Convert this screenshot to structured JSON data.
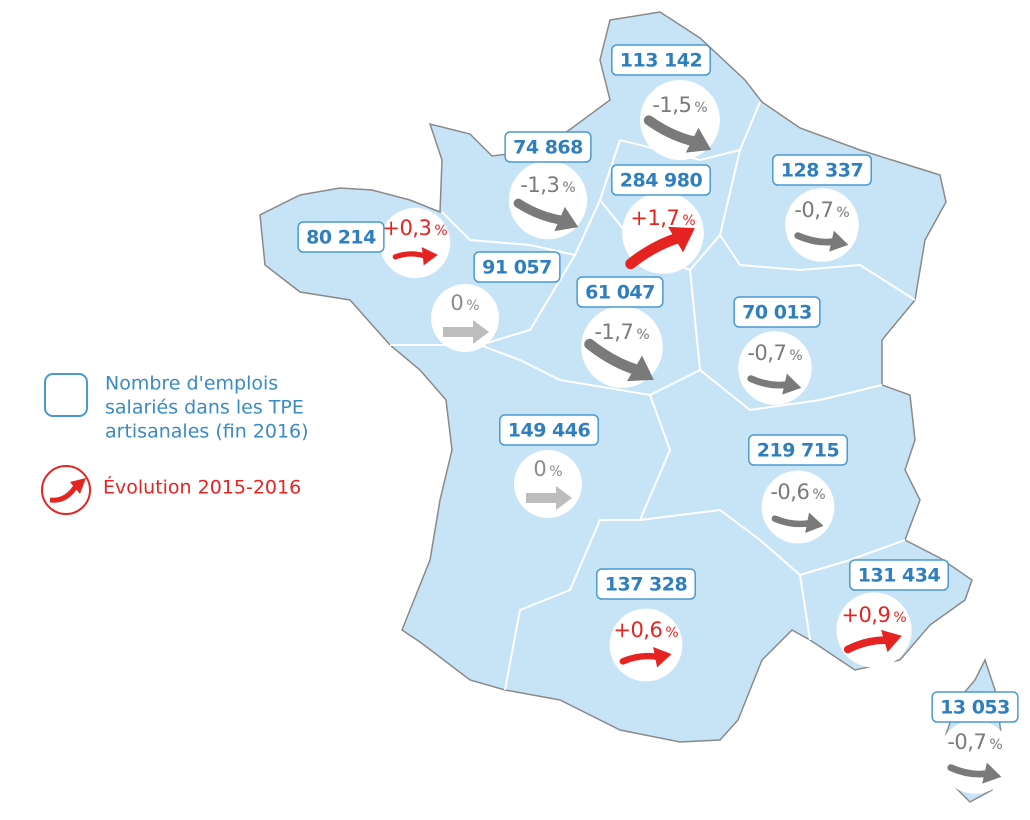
{
  "legend": {
    "employees_lines": [
      "Nombre d'emplois",
      "salariés dans les TPE",
      "artisanales (fin 2016)"
    ],
    "evolution": "Évolution 2015-2016",
    "evolution_color": "#e52421"
  },
  "unit": "%",
  "regions": [
    {
      "employees": "113 142",
      "evolution": "-1,5",
      "color": "#7a7a7a"
    },
    {
      "employees": "74 868",
      "evolution": "-1,3",
      "color": "#7a7a7a"
    },
    {
      "employees": "284 980",
      "evolution": "+1,7",
      "color": "#e52421"
    },
    {
      "employees": "128 337",
      "evolution": "-0,7",
      "color": "#7a7a7a"
    },
    {
      "employees": "80 214",
      "evolution": "+0,3",
      "color": "#e52421"
    },
    {
      "employees": "91 057",
      "evolution": "0",
      "color": "#8c8c8c"
    },
    {
      "employees": "61 047",
      "evolution": "-1,7",
      "color": "#7a7a7a"
    },
    {
      "employees": "70 013",
      "evolution": "-0,7",
      "color": "#7a7a7a"
    },
    {
      "employees": "149 446",
      "evolution": "0",
      "color": "#8c8c8c"
    },
    {
      "employees": "219 715",
      "evolution": "-0,6",
      "color": "#7a7a7a"
    },
    {
      "employees": "137 328",
      "evolution": "+0,6",
      "color": "#e52421"
    },
    {
      "employees": "131 434",
      "evolution": "+0,9",
      "color": "#e52421"
    },
    {
      "employees": "13 053",
      "evolution": "-0,7",
      "color": "#7a7a7a"
    }
  ]
}
